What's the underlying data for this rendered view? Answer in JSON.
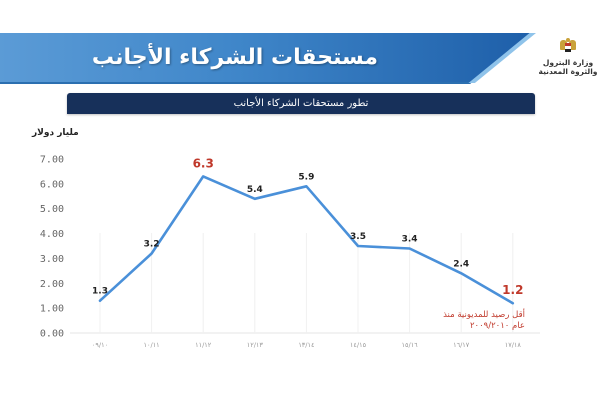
{
  "header": {
    "title": "مستحقات الشركاء الأجانب",
    "ministry_line1": "وزارة البترول",
    "ministry_line2": "والثروة المعدنية",
    "logo_icon": "egypt-eagle-emblem"
  },
  "subtitle": "تطور مستحقات الشركاء الأجانب",
  "colors": {
    "banner_start": "#5b9bd6",
    "banner_end": "#1e5fa9",
    "subtitle_bg": "#17305a",
    "line": "#4a90d9",
    "highlight": "#c0392b"
  },
  "chart_data": {
    "type": "line",
    "title": "تطور مستحقات الشركاء الأجانب",
    "xlabel": "",
    "ylabel": "مليار دولار",
    "ylim": [
      0,
      7
    ],
    "yticks": [
      "0.00",
      "1.00",
      "2.00",
      "3.00",
      "4.00",
      "5.00",
      "6.00",
      "7.00"
    ],
    "categories": [
      "٠٩/١٠",
      "١٠/١١",
      "١١/١٢",
      "١٢/١٣",
      "١٣/١٤",
      "١٤/١٥",
      "١٥/١٦",
      "١٦/١٧",
      "١٧/١٨"
    ],
    "series": [
      {
        "name": "مستحقات الشركاء الأجانب",
        "values": [
          1.3,
          3.2,
          6.3,
          5.4,
          5.9,
          3.5,
          3.4,
          2.4,
          1.2
        ]
      }
    ],
    "value_labels": [
      "1.3",
      "3.2",
      "6.3",
      "5.4",
      "5.9",
      "3.5",
      "3.4",
      "2.4",
      "1.2"
    ],
    "highlighted_points": [
      2,
      8
    ],
    "grid": {
      "vertical": true,
      "horizontal": false
    },
    "annotation": {
      "line1": "أقل رصيد للمديونية منذ",
      "line2": "عام ٢٠٠٩/٢٠١٠"
    }
  }
}
